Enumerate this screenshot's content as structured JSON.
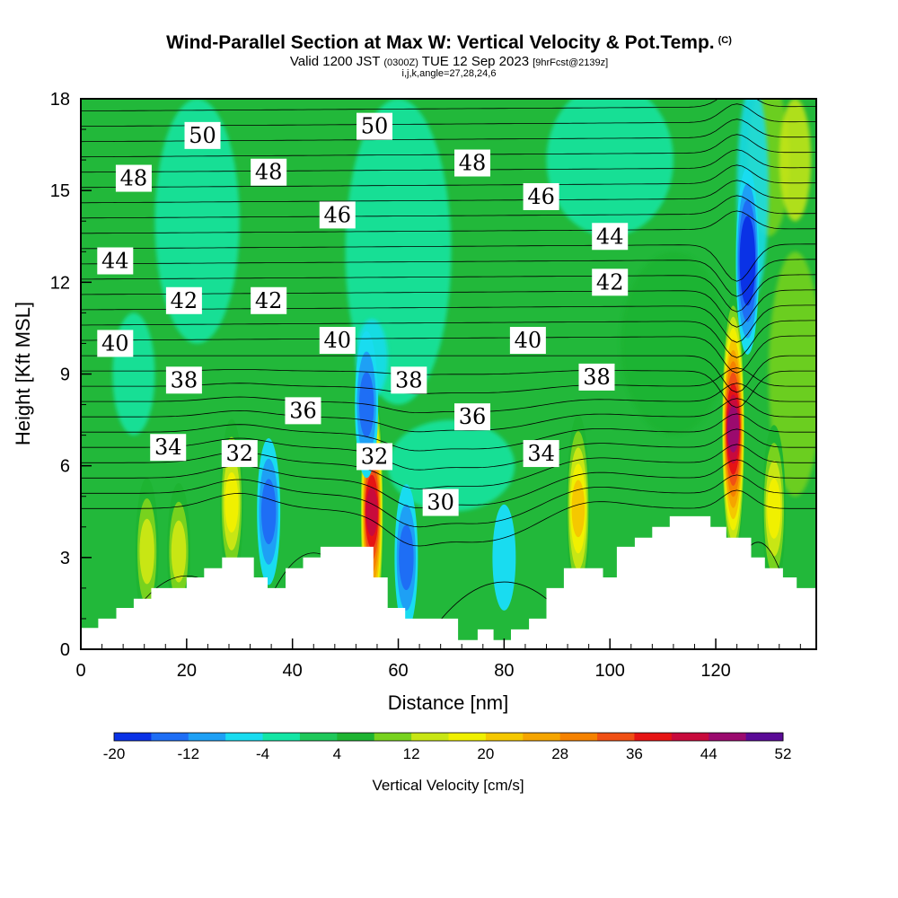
{
  "header": {
    "title": "Wind-Parallel Section at Max W: Vertical Velocity & Pot.Temp.",
    "copyright": "(C)",
    "valid_main": "Valid 1200 JST",
    "valid_zulu": "(0300Z)",
    "valid_date": "TUE 12 Sep 2023",
    "forecast": "[9hrFcst@2139z]",
    "indices": "i,j,k,angle=27,28,24,6"
  },
  "colors": {
    "terrain": "#ffffff",
    "contour": "#000000",
    "background_field": "#22b83a"
  },
  "chart_data": {
    "type": "heatmap",
    "xlabel": "Distance [nm]",
    "ylabel": "Height [Kft MSL]",
    "xlim": [
      0,
      139
    ],
    "ylim": [
      0,
      18
    ],
    "x_ticks": [
      "0",
      "20",
      "40",
      "60",
      "80",
      "100",
      "120"
    ],
    "y_ticks": [
      "0",
      "3",
      "6",
      "9",
      "12",
      "15",
      "18"
    ],
    "colorbar": {
      "label": "Vertical Velocity [cm/s]",
      "tick_labels": [
        "-20",
        "-12",
        "-4",
        "4",
        "12",
        "20",
        "28",
        "36",
        "44",
        "52"
      ],
      "levels": [
        -20,
        -16,
        -12,
        -8,
        -4,
        0,
        4,
        8,
        12,
        16,
        20,
        24,
        28,
        32,
        36,
        40,
        44,
        48,
        52
      ],
      "colors": [
        "#0a32e6",
        "#1e6ef5",
        "#1ea0f5",
        "#19dcf0",
        "#13e6a5",
        "#1ec85a",
        "#1eb432",
        "#78d21e",
        "#c8e614",
        "#f0f000",
        "#f5c800",
        "#f5a500",
        "#f58200",
        "#f05014",
        "#e61414",
        "#c80a3c",
        "#9b0a6e",
        "#5a0a96"
      ]
    },
    "terrain_profile": [
      [
        0,
        0.7
      ],
      [
        3.3,
        0.7
      ],
      [
        3.3,
        1.0
      ],
      [
        6.7,
        1.0
      ],
      [
        6.7,
        1.35
      ],
      [
        10,
        1.35
      ],
      [
        10,
        1.65
      ],
      [
        13.3,
        1.65
      ],
      [
        13.3,
        2.0
      ],
      [
        20,
        2.0
      ],
      [
        20,
        2.35
      ],
      [
        23.3,
        2.35
      ],
      [
        23.3,
        2.65
      ],
      [
        26.7,
        2.65
      ],
      [
        26.7,
        3.0
      ],
      [
        32.7,
        3.0
      ],
      [
        32.7,
        2.35
      ],
      [
        35.3,
        2.35
      ],
      [
        35.3,
        2.0
      ],
      [
        38.7,
        2.0
      ],
      [
        38.7,
        2.65
      ],
      [
        42,
        2.65
      ],
      [
        42,
        3.0
      ],
      [
        45.3,
        3.0
      ],
      [
        45.3,
        3.35
      ],
      [
        55.3,
        3.35
      ],
      [
        55.3,
        2.35
      ],
      [
        58,
        2.35
      ],
      [
        58,
        1.35
      ],
      [
        61.3,
        1.35
      ],
      [
        61.3,
        1.0
      ],
      [
        71.3,
        1.0
      ],
      [
        71.3,
        0.3
      ],
      [
        75,
        0.3
      ],
      [
        75,
        0.65
      ],
      [
        78,
        0.65
      ],
      [
        78,
        0.3
      ],
      [
        81.3,
        0.3
      ],
      [
        81.3,
        0.65
      ],
      [
        84.7,
        0.65
      ],
      [
        84.7,
        1.0
      ],
      [
        88,
        1.0
      ],
      [
        88,
        2.0
      ],
      [
        91.3,
        2.0
      ],
      [
        91.3,
        2.65
      ],
      [
        98.7,
        2.65
      ],
      [
        98.7,
        2.35
      ],
      [
        101.3,
        2.35
      ],
      [
        101.3,
        3.35
      ],
      [
        104.7,
        3.35
      ],
      [
        104.7,
        3.65
      ],
      [
        108,
        3.65
      ],
      [
        108,
        4.0
      ],
      [
        111.3,
        4.0
      ],
      [
        111.3,
        4.35
      ],
      [
        119,
        4.35
      ],
      [
        119,
        4.0
      ],
      [
        122,
        4.0
      ],
      [
        122,
        3.65
      ],
      [
        126.7,
        3.65
      ],
      [
        126.7,
        3.0
      ],
      [
        129.3,
        3.0
      ],
      [
        129.3,
        2.65
      ],
      [
        132.7,
        2.65
      ],
      [
        132.7,
        2.35
      ],
      [
        135.3,
        2.35
      ],
      [
        135.3,
        2.0
      ],
      [
        139,
        2.0
      ]
    ],
    "w_features": [
      {
        "x": 123.3,
        "y": 7.2,
        "w": 45
      },
      {
        "x": 55,
        "y": 4.5,
        "w": 38
      },
      {
        "x": 94,
        "y": 4.6,
        "w": 20
      },
      {
        "x": 28.5,
        "y": 4.8,
        "w": 16
      },
      {
        "x": 131,
        "y": 4.6,
        "w": 16
      },
      {
        "x": 12.5,
        "y": 3.2,
        "w": 12
      },
      {
        "x": 18.5,
        "y": 3.2,
        "w": 10
      },
      {
        "x": 126,
        "y": 12.7,
        "w": -20
      },
      {
        "x": 35.5,
        "y": 4.5,
        "w": -12
      },
      {
        "x": 61.5,
        "y": 3.0,
        "w": -12
      },
      {
        "x": 54,
        "y": 8.0,
        "w": -12
      },
      {
        "x": 80,
        "y": 3.0,
        "w": -4
      }
    ],
    "theta_labels": [
      {
        "text": "50",
        "x": 23,
        "y": 16.8
      },
      {
        "text": "50",
        "x": 55.5,
        "y": 17.1
      },
      {
        "text": "48",
        "x": 10,
        "y": 15.4
      },
      {
        "text": "48",
        "x": 35.5,
        "y": 15.6
      },
      {
        "text": "48",
        "x": 74,
        "y": 15.9
      },
      {
        "text": "46",
        "x": 48.5,
        "y": 14.2
      },
      {
        "text": "46",
        "x": 87,
        "y": 14.8
      },
      {
        "text": "44",
        "x": 6.5,
        "y": 12.7
      },
      {
        "text": "44",
        "x": 100,
        "y": 13.5
      },
      {
        "text": "42",
        "x": 19.5,
        "y": 11.4
      },
      {
        "text": "42",
        "x": 35.5,
        "y": 11.4
      },
      {
        "text": "42",
        "x": 100,
        "y": 12.0
      },
      {
        "text": "40",
        "x": 6.5,
        "y": 10.0
      },
      {
        "text": "40",
        "x": 48.5,
        "y": 10.1
      },
      {
        "text": "40",
        "x": 84.5,
        "y": 10.1
      },
      {
        "text": "38",
        "x": 19.5,
        "y": 8.8
      },
      {
        "text": "38",
        "x": 62,
        "y": 8.8
      },
      {
        "text": "38",
        "x": 97.5,
        "y": 8.9
      },
      {
        "text": "36",
        "x": 42,
        "y": 7.8
      },
      {
        "text": "36",
        "x": 74,
        "y": 7.6
      },
      {
        "text": "34",
        "x": 16.5,
        "y": 6.6
      },
      {
        "text": "34",
        "x": 87,
        "y": 6.4
      },
      {
        "text": "32",
        "x": 30,
        "y": 6.4
      },
      {
        "text": "32",
        "x": 55.5,
        "y": 6.3
      },
      {
        "text": "30",
        "x": 68,
        "y": 4.8
      }
    ]
  }
}
